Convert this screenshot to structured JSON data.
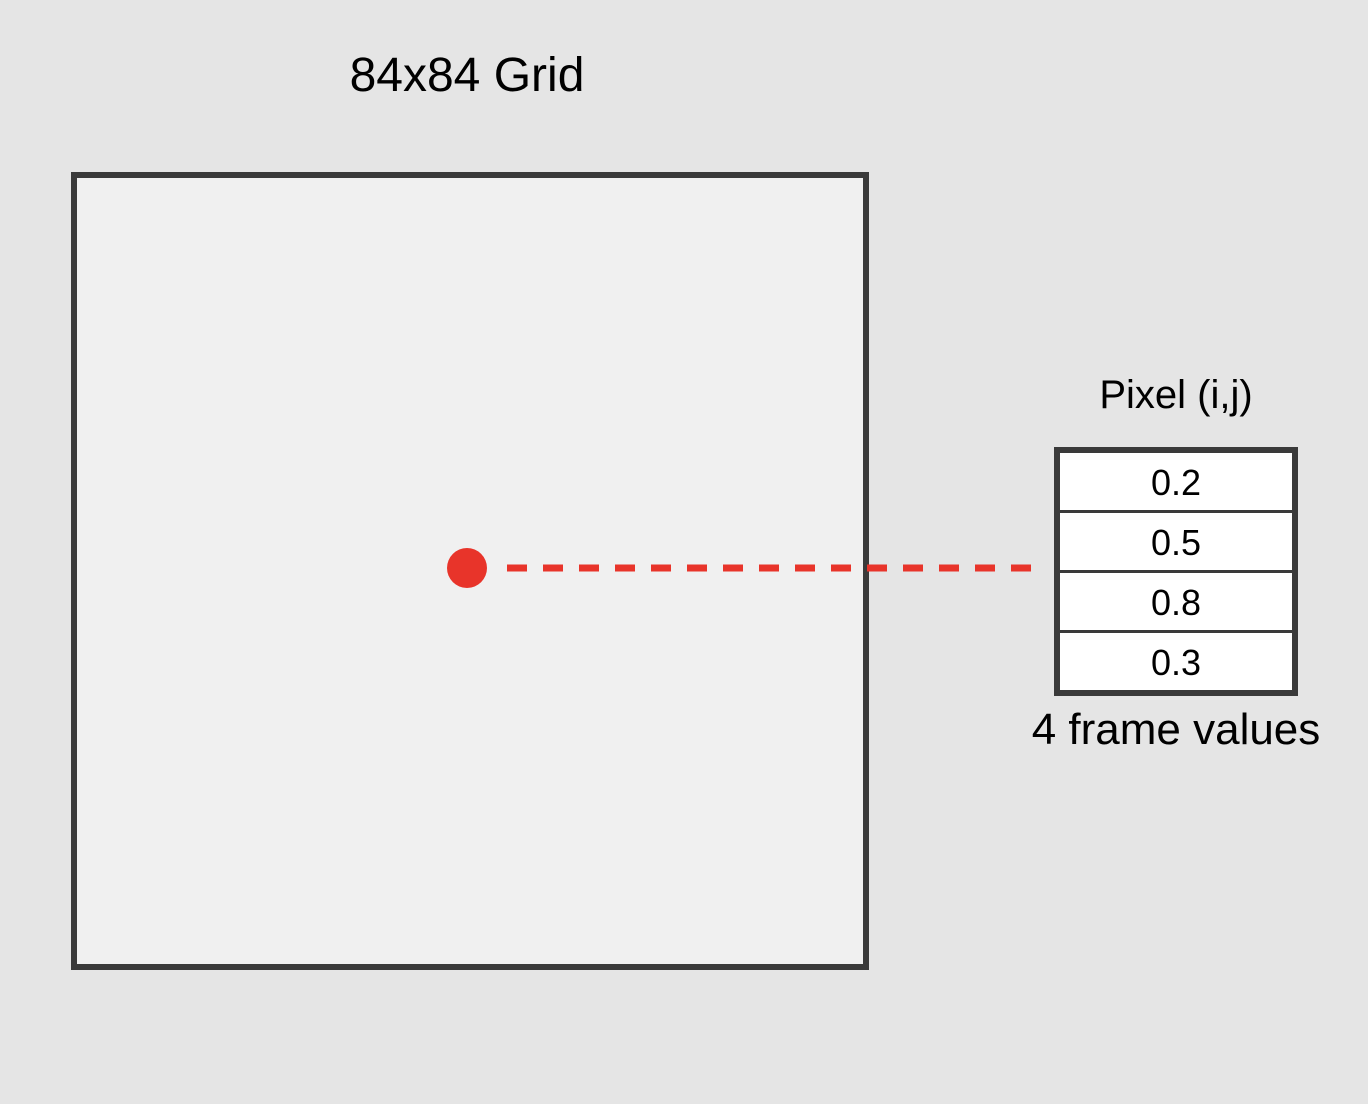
{
  "grid": {
    "title": "84x84 Grid"
  },
  "pixel": {
    "title": "Pixel (i,j)",
    "frame_values": [
      "0.2",
      "0.5",
      "0.8",
      "0.3"
    ],
    "caption": "4 frame values"
  },
  "colors": {
    "marker": "#e8342a",
    "border": "#3a3a3a",
    "grid_fill": "#f0f0f0",
    "background": "#e5e5e5"
  }
}
